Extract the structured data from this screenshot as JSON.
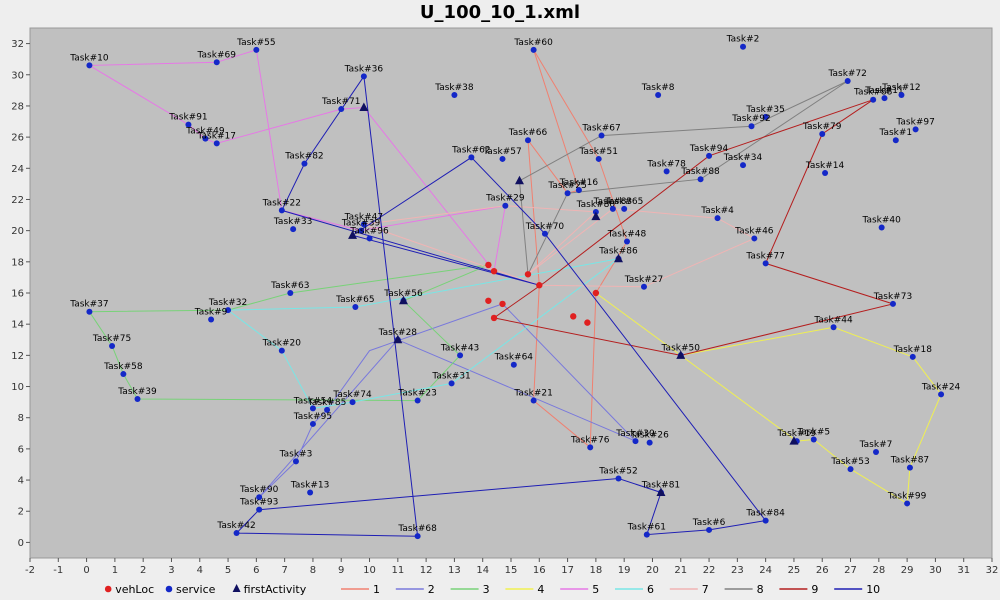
{
  "chart_data": {
    "type": "scatter",
    "title": "U_100_10_1.xml",
    "xlim": [
      -2,
      32
    ],
    "ylim": [
      -1,
      33
    ],
    "x_ticks": [
      -2,
      -1,
      0,
      1,
      2,
      3,
      4,
      5,
      6,
      7,
      8,
      9,
      10,
      11,
      12,
      13,
      14,
      15,
      16,
      17,
      18,
      19,
      20,
      21,
      22,
      23,
      24,
      25,
      26,
      27,
      28,
      29,
      30,
      31,
      32
    ],
    "y_ticks": [
      0,
      2,
      4,
      6,
      8,
      10,
      12,
      14,
      16,
      18,
      20,
      22,
      24,
      26,
      28,
      30,
      32
    ],
    "grid": false,
    "legend": {
      "position": "bottom",
      "entries": [
        {
          "label": "vehLoc",
          "marker": "circle",
          "color": "#e02020"
        },
        {
          "label": "service",
          "marker": "circle",
          "color": "#1428c8"
        },
        {
          "label": "firstActivity",
          "marker": "triangle",
          "color": "#101060"
        },
        {
          "label": "1",
          "marker": "line",
          "color": "#f08070"
        },
        {
          "label": "2",
          "marker": "line",
          "color": "#7878dc"
        },
        {
          "label": "3",
          "marker": "line",
          "color": "#78d278"
        },
        {
          "label": "4",
          "marker": "line",
          "color": "#f0f050"
        },
        {
          "label": "5",
          "marker": "line",
          "color": "#e678e6"
        },
        {
          "label": "6",
          "marker": "line",
          "color": "#78e6e6"
        },
        {
          "label": "7",
          "marker": "line",
          "color": "#f0b4b4"
        },
        {
          "label": "8",
          "marker": "line",
          "color": "#808080"
        },
        {
          "label": "9",
          "marker": "line",
          "color": "#b41e1e"
        },
        {
          "label": "10",
          "marker": "line",
          "color": "#1e1eb4"
        }
      ]
    },
    "tasks": [
      {
        "name": "Task#10",
        "x": 0.1,
        "y": 30.6
      },
      {
        "name": "Task#69",
        "x": 4.6,
        "y": 30.8
      },
      {
        "name": "Task#55",
        "x": 6.0,
        "y": 31.6
      },
      {
        "name": "Task#36",
        "x": 9.8,
        "y": 29.9
      },
      {
        "name": "Task#60",
        "x": 15.8,
        "y": 31.6
      },
      {
        "name": "Task#2",
        "x": 23.2,
        "y": 31.8
      },
      {
        "name": "Task#38",
        "x": 13.0,
        "y": 28.7
      },
      {
        "name": "Task#8",
        "x": 20.2,
        "y": 28.7
      },
      {
        "name": "Task#72",
        "x": 26.9,
        "y": 29.6
      },
      {
        "name": "Task#88",
        "x": 27.8,
        "y": 28.4
      },
      {
        "name": "Task#11",
        "x": 28.2,
        "y": 28.5
      },
      {
        "name": "Task#12",
        "x": 28.8,
        "y": 28.7
      },
      {
        "name": "Task#35",
        "x": 24.0,
        "y": 27.3
      },
      {
        "name": "Task#71",
        "x": 9.0,
        "y": 27.8
      },
      {
        "name": "Task#91",
        "x": 3.6,
        "y": 26.8
      },
      {
        "name": "Task#49",
        "x": 4.2,
        "y": 25.9
      },
      {
        "name": "Task#17",
        "x": 4.6,
        "y": 25.6
      },
      {
        "name": "Task#66",
        "x": 15.6,
        "y": 25.8
      },
      {
        "name": "Task#67",
        "x": 18.2,
        "y": 26.1
      },
      {
        "name": "Task#92",
        "x": 23.5,
        "y": 26.7
      },
      {
        "name": "Task#79",
        "x": 26.0,
        "y": 26.2
      },
      {
        "name": "Task#1",
        "x": 28.6,
        "y": 25.8
      },
      {
        "name": "Task#97",
        "x": 29.3,
        "y": 26.5
      },
      {
        "name": "Task#82",
        "x": 7.7,
        "y": 24.3
      },
      {
        "name": "Task#62",
        "x": 13.6,
        "y": 24.7
      },
      {
        "name": "Task#57",
        "x": 14.7,
        "y": 24.6
      },
      {
        "name": "Task#51",
        "x": 18.1,
        "y": 24.6
      },
      {
        "name": "Task#78",
        "x": 20.5,
        "y": 23.8
      },
      {
        "name": "Task#94",
        "x": 22.0,
        "y": 24.8
      },
      {
        "name": "Task#34",
        "x": 23.2,
        "y": 24.2
      },
      {
        "name": "Task#14",
        "x": 26.1,
        "y": 23.7
      },
      {
        "name": "Task#88",
        "x": 21.7,
        "y": 23.3
      },
      {
        "name": "Task#25",
        "x": 17.0,
        "y": 22.4
      },
      {
        "name": "Task#16",
        "x": 17.4,
        "y": 22.6
      },
      {
        "name": "Task#29",
        "x": 14.8,
        "y": 21.6
      },
      {
        "name": "Task#22",
        "x": 6.9,
        "y": 21.3
      },
      {
        "name": "Task#80",
        "x": 18.0,
        "y": 21.2
      },
      {
        "name": "Task#83",
        "x": 18.6,
        "y": 21.4
      },
      {
        "name": "Task#65",
        "x": 19.0,
        "y": 21.4
      },
      {
        "name": "Task#4",
        "x": 22.3,
        "y": 20.8
      },
      {
        "name": "Task#70",
        "x": 16.2,
        "y": 19.8
      },
      {
        "name": "Task#33",
        "x": 7.3,
        "y": 20.1
      },
      {
        "name": "Task#47",
        "x": 9.8,
        "y": 20.4
      },
      {
        "name": "Task#39",
        "x": 9.7,
        "y": 20.0
      },
      {
        "name": "Task#96",
        "x": 10.0,
        "y": 19.5
      },
      {
        "name": "Task#40",
        "x": 28.1,
        "y": 20.2
      },
      {
        "name": "Task#48",
        "x": 19.1,
        "y": 19.3
      },
      {
        "name": "Task#46",
        "x": 23.6,
        "y": 19.5
      },
      {
        "name": "Task#86",
        "x": 18.8,
        "y": 18.2
      },
      {
        "name": "Task#77",
        "x": 24.0,
        "y": 17.9
      },
      {
        "name": "Task#63",
        "x": 7.2,
        "y": 16.0
      },
      {
        "name": "Task#27",
        "x": 19.7,
        "y": 16.4
      },
      {
        "name": "Task#37",
        "x": 0.1,
        "y": 14.8
      },
      {
        "name": "Task#32",
        "x": 5.0,
        "y": 14.9
      },
      {
        "name": "Task#9",
        "x": 4.4,
        "y": 14.3
      },
      {
        "name": "Task#65",
        "x": 9.5,
        "y": 15.1
      },
      {
        "name": "Task#56",
        "x": 11.2,
        "y": 15.5
      },
      {
        "name": "Task#73",
        "x": 28.5,
        "y": 15.3
      },
      {
        "name": "Task#44",
        "x": 26.4,
        "y": 13.8
      },
      {
        "name": "Task#75",
        "x": 0.9,
        "y": 12.6
      },
      {
        "name": "Task#28",
        "x": 11.0,
        "y": 13.0
      },
      {
        "name": "Task#20",
        "x": 6.9,
        "y": 12.3
      },
      {
        "name": "Task#50",
        "x": 21.0,
        "y": 12.0
      },
      {
        "name": "Task#18",
        "x": 29.2,
        "y": 11.9
      },
      {
        "name": "Task#43",
        "x": 13.2,
        "y": 12.0
      },
      {
        "name": "Task#64",
        "x": 15.1,
        "y": 11.4
      },
      {
        "name": "Task#58",
        "x": 1.3,
        "y": 10.8
      },
      {
        "name": "Task#31",
        "x": 12.9,
        "y": 10.2
      },
      {
        "name": "Task#24",
        "x": 30.2,
        "y": 9.5
      },
      {
        "name": "Task#39",
        "x": 1.8,
        "y": 9.2
      },
      {
        "name": "Task#74",
        "x": 9.4,
        "y": 9.0
      },
      {
        "name": "Task#23",
        "x": 11.7,
        "y": 9.1
      },
      {
        "name": "Task#21",
        "x": 15.8,
        "y": 9.1
      },
      {
        "name": "Task#54",
        "x": 8.0,
        "y": 8.6
      },
      {
        "name": "Task#85",
        "x": 8.5,
        "y": 8.5
      },
      {
        "name": "Task#95",
        "x": 8.0,
        "y": 7.6
      },
      {
        "name": "Task#76",
        "x": 17.8,
        "y": 6.1
      },
      {
        "name": "Task#30",
        "x": 19.4,
        "y": 6.5
      },
      {
        "name": "Task#26",
        "x": 19.9,
        "y": 6.4
      },
      {
        "name": "Task#19",
        "x": 25.1,
        "y": 6.5
      },
      {
        "name": "Task#5",
        "x": 25.7,
        "y": 6.6
      },
      {
        "name": "Task#7",
        "x": 27.9,
        "y": 5.8
      },
      {
        "name": "Task#3",
        "x": 7.4,
        "y": 5.2
      },
      {
        "name": "Task#53",
        "x": 27.0,
        "y": 4.7
      },
      {
        "name": "Task#87",
        "x": 29.1,
        "y": 4.8
      },
      {
        "name": "Task#52",
        "x": 18.8,
        "y": 4.1
      },
      {
        "name": "Task#13",
        "x": 7.9,
        "y": 3.2
      },
      {
        "name": "Task#90",
        "x": 6.1,
        "y": 2.9
      },
      {
        "name": "Task#81",
        "x": 20.3,
        "y": 3.2
      },
      {
        "name": "Task#99",
        "x": 29.0,
        "y": 2.5
      },
      {
        "name": "Task#93",
        "x": 6.1,
        "y": 2.1
      },
      {
        "name": "Task#84",
        "x": 24.0,
        "y": 1.4
      },
      {
        "name": "Task#42",
        "x": 5.3,
        "y": 0.6
      },
      {
        "name": "Task#68",
        "x": 11.7,
        "y": 0.4
      },
      {
        "name": "Task#61",
        "x": 19.8,
        "y": 0.5
      },
      {
        "name": "Task#6",
        "x": 22.0,
        "y": 0.8
      }
    ],
    "first_activities": [
      {
        "x": 9.8,
        "y": 27.9
      },
      {
        "x": 15.3,
        "y": 23.2
      },
      {
        "x": 18.0,
        "y": 20.9
      },
      {
        "x": 9.4,
        "y": 19.7
      },
      {
        "x": 18.8,
        "y": 18.2
      },
      {
        "x": 11.2,
        "y": 15.5
      },
      {
        "x": 11.0,
        "y": 13.0
      },
      {
        "x": 21.0,
        "y": 12.0
      },
      {
        "x": 25.0,
        "y": 6.5
      },
      {
        "x": 20.3,
        "y": 3.2
      }
    ],
    "vehicle_locations": [
      {
        "x": 14.2,
        "y": 17.8
      },
      {
        "x": 14.4,
        "y": 17.4
      },
      {
        "x": 15.6,
        "y": 17.2
      },
      {
        "x": 16.0,
        "y": 16.5
      },
      {
        "x": 14.2,
        "y": 15.5
      },
      {
        "x": 14.7,
        "y": 15.3
      },
      {
        "x": 18.0,
        "y": 16.0
      },
      {
        "x": 14.4,
        "y": 14.4
      },
      {
        "x": 17.2,
        "y": 14.5
      },
      {
        "x": 17.7,
        "y": 14.1
      }
    ],
    "routes": [
      {
        "name": "1",
        "points": [
          [
            16.0,
            16.5
          ],
          [
            15.6,
            25.8
          ],
          [
            17.0,
            22.4
          ],
          [
            17.4,
            22.6
          ],
          [
            15.8,
            31.6
          ],
          [
            18.1,
            24.6
          ],
          [
            19.1,
            19.3
          ],
          [
            18.0,
            16.0
          ],
          [
            17.8,
            6.1
          ],
          [
            15.8,
            9.1
          ],
          [
            16.0,
            16.5
          ]
        ]
      },
      {
        "name": "2",
        "points": [
          [
            14.7,
            15.3
          ],
          [
            10.0,
            12.3
          ],
          [
            8.5,
            8.5
          ],
          [
            8.0,
            7.6
          ],
          [
            7.4,
            5.2
          ],
          [
            6.1,
            2.9
          ],
          [
            11.0,
            13.0
          ],
          [
            19.4,
            6.5
          ],
          [
            14.7,
            15.3
          ]
        ]
      },
      {
        "name": "3",
        "points": [
          [
            14.2,
            17.8
          ],
          [
            7.2,
            16.0
          ],
          [
            5.0,
            14.9
          ],
          [
            0.1,
            14.8
          ],
          [
            0.9,
            12.6
          ],
          [
            1.3,
            10.8
          ],
          [
            1.8,
            9.2
          ],
          [
            11.7,
            9.1
          ],
          [
            13.2,
            12.0
          ],
          [
            11.2,
            15.5
          ],
          [
            14.2,
            17.8
          ]
        ]
      },
      {
        "name": "4",
        "points": [
          [
            18.0,
            16.0
          ],
          [
            21.0,
            12.0
          ],
          [
            26.4,
            13.8
          ],
          [
            29.2,
            11.9
          ],
          [
            30.2,
            9.5
          ],
          [
            29.1,
            4.8
          ],
          [
            29.0,
            2.5
          ],
          [
            27.0,
            4.7
          ],
          [
            25.7,
            6.6
          ],
          [
            25.1,
            6.5
          ],
          [
            21.0,
            12.0
          ],
          [
            18.0,
            16.0
          ]
        ]
      },
      {
        "name": "5",
        "points": [
          [
            14.4,
            17.4
          ],
          [
            9.8,
            27.9
          ],
          [
            9.0,
            27.8
          ],
          [
            4.6,
            25.6
          ],
          [
            4.2,
            25.9
          ],
          [
            3.6,
            26.8
          ],
          [
            0.1,
            30.6
          ],
          [
            4.6,
            30.8
          ],
          [
            6.0,
            31.6
          ],
          [
            6.9,
            21.3
          ],
          [
            9.7,
            20.0
          ],
          [
            14.8,
            21.6
          ],
          [
            14.4,
            17.4
          ]
        ]
      },
      {
        "name": "6",
        "points": [
          [
            18.8,
            18.2
          ],
          [
            12.9,
            10.2
          ],
          [
            9.4,
            9.0
          ],
          [
            8.0,
            8.6
          ],
          [
            6.9,
            12.3
          ],
          [
            5.0,
            14.9
          ],
          [
            9.5,
            15.1
          ],
          [
            18.8,
            18.2
          ]
        ]
      },
      {
        "name": "7",
        "points": [
          [
            15.6,
            17.2
          ],
          [
            18.6,
            21.4
          ],
          [
            22.3,
            20.8
          ],
          [
            23.6,
            19.5
          ],
          [
            19.7,
            16.4
          ],
          [
            16.0,
            16.5
          ],
          [
            9.8,
            20.4
          ],
          [
            14.8,
            21.6
          ],
          [
            18.0,
            21.2
          ],
          [
            15.6,
            17.2
          ]
        ]
      },
      {
        "name": "8",
        "points": [
          [
            15.6,
            17.2
          ],
          [
            15.3,
            23.2
          ],
          [
            18.2,
            26.1
          ],
          [
            23.5,
            26.7
          ],
          [
            26.9,
            29.6
          ],
          [
            21.7,
            23.3
          ],
          [
            17.0,
            22.4
          ],
          [
            15.6,
            17.2
          ]
        ]
      },
      {
        "name": "9",
        "points": [
          [
            14.4,
            14.4
          ],
          [
            16.2,
            16.7
          ],
          [
            22.0,
            24.8
          ],
          [
            27.8,
            28.4
          ],
          [
            26.0,
            26.2
          ],
          [
            24.0,
            17.9
          ],
          [
            28.5,
            15.3
          ],
          [
            21.0,
            12.0
          ],
          [
            14.4,
            14.4
          ]
        ]
      },
      {
        "name": "10",
        "points": [
          [
            16.0,
            16.5
          ],
          [
            9.4,
            19.7
          ],
          [
            13.6,
            24.7
          ],
          [
            16.2,
            19.8
          ],
          [
            24.0,
            1.4
          ],
          [
            22.0,
            0.8
          ],
          [
            19.8,
            0.5
          ],
          [
            20.3,
            3.2
          ],
          [
            18.8,
            4.1
          ],
          [
            6.1,
            2.1
          ],
          [
            5.3,
            0.6
          ],
          [
            11.7,
            0.4
          ],
          [
            9.8,
            29.9
          ],
          [
            7.7,
            24.3
          ],
          [
            6.9,
            21.3
          ],
          [
            16.0,
            16.5
          ]
        ]
      }
    ]
  }
}
